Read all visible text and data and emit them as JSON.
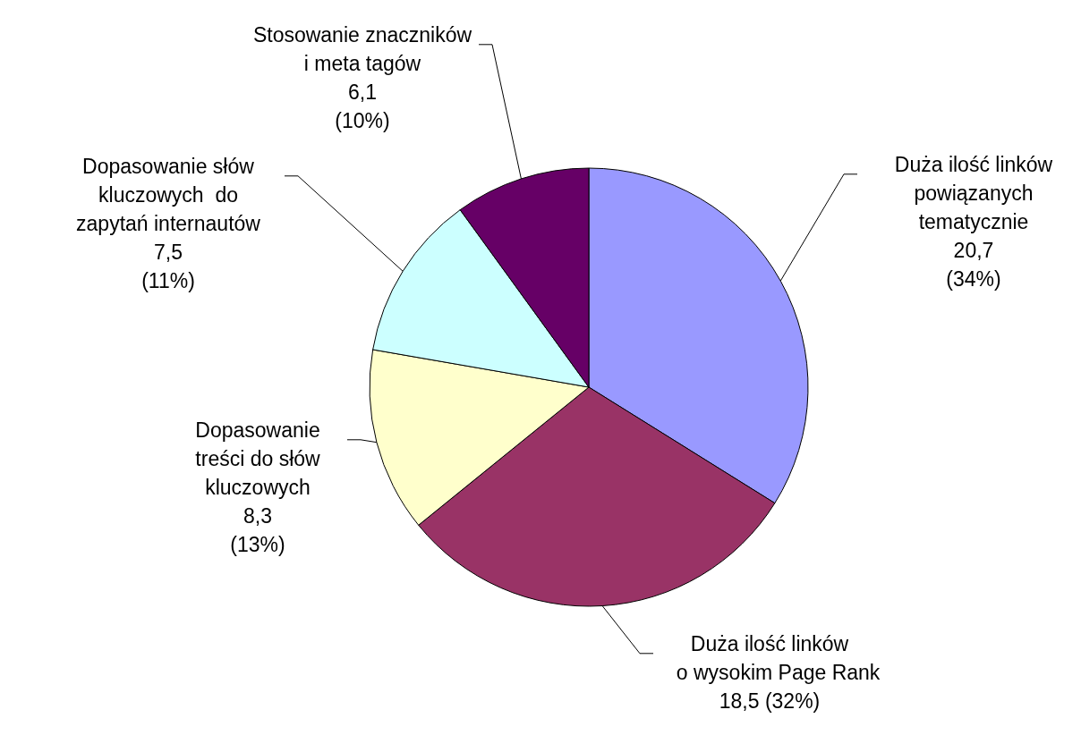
{
  "chart_data": {
    "type": "pie",
    "categories": [
      "Duża ilość linków\npowiązanych\ntematycznie",
      "Duża ilość linków\n   o wysokim Page Rank",
      "Dopasowanie\ntreści do słów\nkluczowych",
      "Dopasowanie słów\nkluczowych  do\nzapytań internautów",
      "Stosowanie znaczników\ni meta tagów"
    ],
    "values": [
      20.7,
      18.5,
      8.3,
      7.5,
      6.1
    ],
    "value_labels": [
      "20,7\n(34%)",
      "18,5 (32%)",
      "8,3\n(13%)",
      "7,5\n(11%)",
      "6,1\n(10%)"
    ],
    "colors": [
      "#9999ff",
      "#993366",
      "#ffffcc",
      "#ccffff",
      "#660066"
    ]
  }
}
